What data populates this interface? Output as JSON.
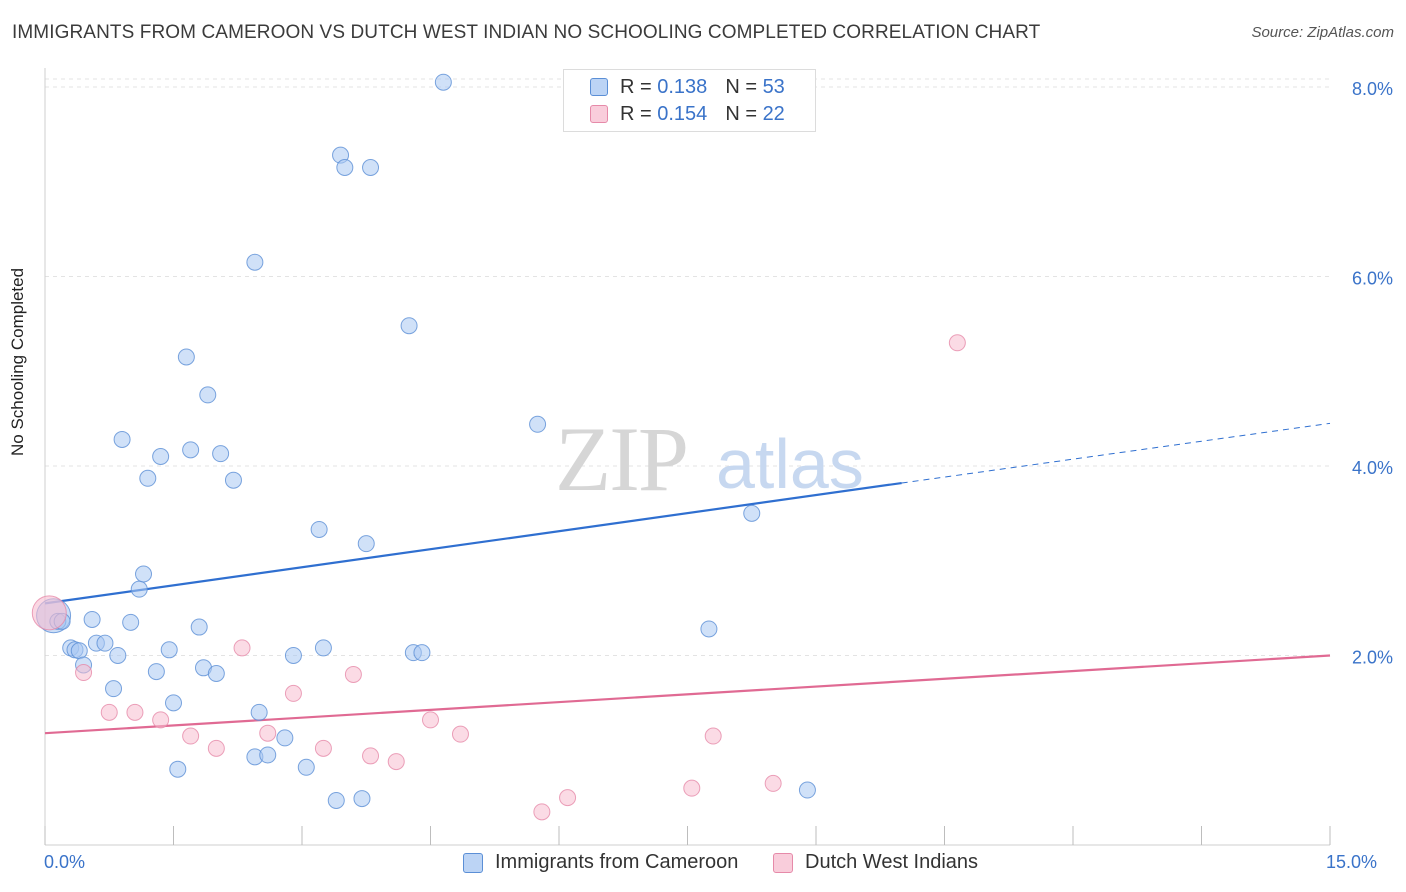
{
  "title": "IMMIGRANTS FROM CAMEROON VS DUTCH WEST INDIAN NO SCHOOLING COMPLETED CORRELATION CHART",
  "source": "Source: ZipAtlas.com",
  "watermark": {
    "zip": "ZIP",
    "atlas": "atlas"
  },
  "legend_top": [
    {
      "r_label": "R =",
      "r_value": "0.138",
      "n_label": "N =",
      "n_value": "53"
    },
    {
      "r_label": "R =",
      "r_value": "0.154",
      "n_label": "N =",
      "n_value": "22"
    }
  ],
  "colors": {
    "series1_fill": "#a9c8f2",
    "series1_stroke": "#5b8fd6",
    "series1_line": "#2f6fd0",
    "series2_fill": "#f7bdd0",
    "series2_stroke": "#e68aa9",
    "series2_line": "#e06a93",
    "tick_label": "#3a73c9",
    "grid": "#e3e3e3"
  },
  "chart_data": {
    "type": "scatter",
    "title": "IMMIGRANTS FROM CAMEROON VS DUTCH WEST INDIAN NO SCHOOLING COMPLETED CORRELATION CHART",
    "xlabel": "",
    "ylabel": "No Schooling Completed",
    "xlim": [
      0,
      15
    ],
    "ylim": [
      0,
      8.2
    ],
    "x_tick_labels": {
      "min": "0.0%",
      "max": "15.0%"
    },
    "y_ticks": [
      {
        "value": 2,
        "label": "2.0%"
      },
      {
        "value": 4,
        "label": "4.0%"
      },
      {
        "value": 6,
        "label": "6.0%"
      },
      {
        "value": 8,
        "label": "8.0%"
      }
    ],
    "grid": "horizontal dashed",
    "legend": "bottom-center",
    "series": [
      {
        "name": "Immigrants from Cameroon",
        "trend": {
          "x0": 0,
          "y0": 2.55,
          "x1": 10.0,
          "y1": 3.82,
          "dashed_to_x": 15.0,
          "dashed_to_y": 4.45
        },
        "points": [
          [
            0.1,
            2.42,
            "large"
          ],
          [
            0.15,
            2.36
          ],
          [
            0.2,
            2.36
          ],
          [
            0.3,
            2.08
          ],
          [
            0.35,
            2.06
          ],
          [
            0.4,
            2.05
          ],
          [
            0.45,
            1.9
          ],
          [
            0.55,
            2.38
          ],
          [
            0.6,
            2.13
          ],
          [
            0.7,
            2.13
          ],
          [
            0.8,
            1.65
          ],
          [
            0.85,
            2.0
          ],
          [
            0.9,
            4.28
          ],
          [
            1.0,
            2.35
          ],
          [
            1.1,
            2.7
          ],
          [
            1.15,
            2.86
          ],
          [
            1.2,
            3.87
          ],
          [
            1.3,
            1.83
          ],
          [
            1.35,
            4.1
          ],
          [
            1.45,
            2.06
          ],
          [
            1.5,
            1.5
          ],
          [
            1.55,
            0.8
          ],
          [
            1.65,
            5.15
          ],
          [
            1.7,
            4.17
          ],
          [
            1.8,
            2.3
          ],
          [
            1.85,
            1.87
          ],
          [
            1.9,
            4.75
          ],
          [
            2.0,
            1.81
          ],
          [
            2.05,
            4.13
          ],
          [
            2.2,
            3.85
          ],
          [
            2.45,
            0.93
          ],
          [
            2.45,
            6.15
          ],
          [
            2.5,
            1.4
          ],
          [
            2.6,
            0.95
          ],
          [
            2.8,
            1.13
          ],
          [
            2.9,
            2.0
          ],
          [
            3.05,
            0.82
          ],
          [
            3.2,
            3.33
          ],
          [
            3.25,
            2.08
          ],
          [
            3.4,
            0.47
          ],
          [
            3.45,
            7.28
          ],
          [
            3.5,
            7.15
          ],
          [
            3.7,
            0.49
          ],
          [
            3.75,
            3.18
          ],
          [
            3.8,
            7.15
          ],
          [
            4.25,
            5.48
          ],
          [
            4.3,
            2.03
          ],
          [
            4.4,
            2.03
          ],
          [
            4.65,
            8.05
          ],
          [
            5.75,
            4.44
          ],
          [
            7.75,
            2.28
          ],
          [
            8.25,
            3.5
          ],
          [
            8.9,
            0.58
          ]
        ]
      },
      {
        "name": "Dutch West Indians",
        "trend": {
          "x0": 0,
          "y0": 1.18,
          "x1": 15.0,
          "y1": 2.0
        },
        "points": [
          [
            0.05,
            2.45,
            "large"
          ],
          [
            0.45,
            1.82
          ],
          [
            0.75,
            1.4
          ],
          [
            1.05,
            1.4
          ],
          [
            1.35,
            1.32
          ],
          [
            1.7,
            1.15
          ],
          [
            2.0,
            1.02
          ],
          [
            2.3,
            2.08
          ],
          [
            2.6,
            1.18
          ],
          [
            2.9,
            1.6
          ],
          [
            3.25,
            1.02
          ],
          [
            3.6,
            1.8
          ],
          [
            3.8,
            0.94
          ],
          [
            4.1,
            0.88
          ],
          [
            4.5,
            1.32
          ],
          [
            4.85,
            1.17
          ],
          [
            5.8,
            0.35
          ],
          [
            6.1,
            0.5
          ],
          [
            7.55,
            0.6
          ],
          [
            7.8,
            1.15
          ],
          [
            8.5,
            0.65
          ],
          [
            10.65,
            5.3
          ]
        ]
      }
    ]
  },
  "bottom_legend": [
    {
      "label": "Immigrants from Cameroon"
    },
    {
      "label": "Dutch West Indians"
    }
  ]
}
